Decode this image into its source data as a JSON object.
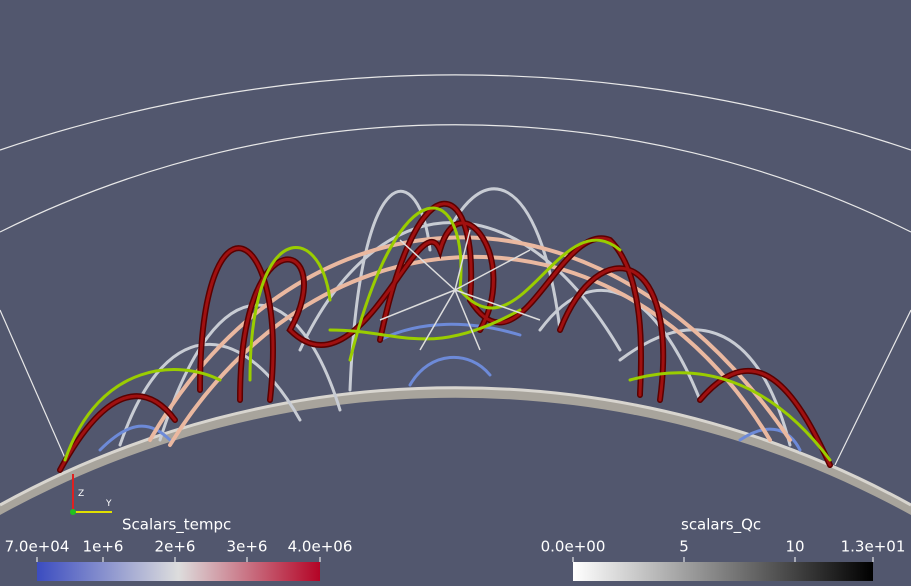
{
  "color_legends": [
    {
      "title": "Scalars_tempc",
      "ticks": [
        "7.0e+04",
        "1e+6",
        "2e+6",
        "3e+6",
        "4.0e+06"
      ]
    },
    {
      "title": "scalars_Qc",
      "ticks": [
        "0.0e+00",
        "5",
        "10",
        "1.3e+01"
      ]
    }
  ],
  "axes_triad": {
    "labels": [
      "Z",
      "Y"
    ]
  }
}
